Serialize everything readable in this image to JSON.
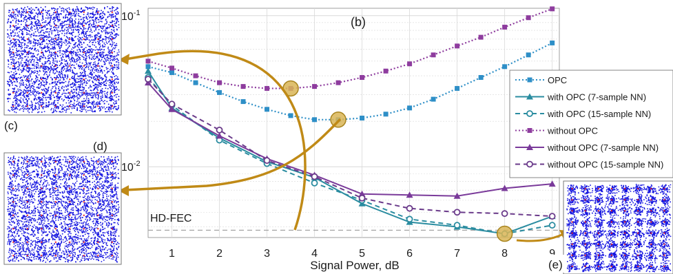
{
  "chart_data": {
    "type": "line",
    "panel_label": "(b)",
    "xlabel": "Signal Power, dB",
    "ylabel": "",
    "x": [
      0.5,
      1,
      1.5,
      2,
      2.5,
      3,
      3.5,
      4,
      4.5,
      5,
      5.5,
      6,
      6.5,
      7,
      7.5,
      8,
      8.5,
      9
    ],
    "xlim": [
      0.5,
      9.15
    ],
    "xticks": [
      1,
      2,
      3,
      4,
      5,
      6,
      7,
      8,
      9
    ],
    "ylim": [
      0.0034,
      0.112
    ],
    "yscale": "log",
    "yticks": [
      {
        "value": 0.1,
        "label": "10^-1",
        "base": "10",
        "exp": "-1"
      },
      {
        "value": 0.01,
        "label": "10^-2",
        "base": "10",
        "exp": "-2"
      }
    ],
    "grid": true,
    "threshold": {
      "label": "HD-FEC",
      "value": 0.0038
    },
    "legend_position": "right",
    "series": [
      {
        "name": "OPC",
        "style": "dotted",
        "marker": "square",
        "color": "#2e8fc7",
        "x": [
          0.5,
          1,
          1.5,
          2,
          2.5,
          3,
          3.5,
          4,
          4.5,
          5,
          5.5,
          6,
          6.5,
          7,
          7.5,
          8,
          8.5,
          9
        ],
        "y": [
          0.046,
          0.042,
          0.036,
          0.031,
          0.027,
          0.024,
          0.0218,
          0.0205,
          0.0205,
          0.021,
          0.0223,
          0.0245,
          0.028,
          0.033,
          0.039,
          0.046,
          0.055,
          0.066
        ]
      },
      {
        "name": "with OPC (7-sample NN)",
        "style": "solid",
        "marker": "triangle",
        "color": "#2a8ca0",
        "x": [
          0.5,
          1,
          2,
          3,
          4,
          5,
          6,
          7,
          8,
          9
        ],
        "y": [
          0.043,
          0.0245,
          0.0155,
          0.0108,
          0.0085,
          0.0057,
          0.0043,
          0.004,
          0.0036,
          0.0047
        ]
      },
      {
        "name": "with OPC (15-sample NN)",
        "style": "dashed",
        "marker": "circle",
        "color": "#2a8ca0",
        "x": [
          0.5,
          1,
          2,
          3,
          4,
          5,
          6,
          7,
          8,
          9
        ],
        "y": [
          0.039,
          0.0255,
          0.015,
          0.0105,
          0.0078,
          0.006,
          0.0045,
          0.0041,
          0.0036,
          0.0041
        ]
      },
      {
        "name": "without OPC",
        "style": "dotted",
        "marker": "square",
        "color": "#8e3c9e",
        "x": [
          0.5,
          1,
          1.5,
          2,
          2.5,
          3,
          3.5,
          4,
          4.5,
          5,
          5.5,
          6,
          6.5,
          7,
          7.5,
          8,
          8.5,
          9
        ],
        "y": [
          0.05,
          0.045,
          0.04,
          0.036,
          0.034,
          0.033,
          0.033,
          0.034,
          0.036,
          0.039,
          0.043,
          0.048,
          0.055,
          0.063,
          0.072,
          0.084,
          0.097,
          0.111
        ]
      },
      {
        "name": "without OPC (7-sample NN)",
        "style": "solid",
        "marker": "triangle",
        "color": "#7a3a9a",
        "x": [
          0.5,
          1,
          2,
          3,
          4,
          5,
          6,
          7,
          8,
          9
        ],
        "y": [
          0.036,
          0.024,
          0.016,
          0.0113,
          0.0088,
          0.0066,
          0.0065,
          0.0064,
          0.0072,
          0.0077
        ]
      },
      {
        "name": "without OPC (15-sample NN)",
        "style": "dashed",
        "marker": "circle",
        "color": "#6a3a8a",
        "x": [
          0.5,
          1,
          2,
          3,
          4,
          5,
          6,
          7,
          8,
          9
        ],
        "y": [
          0.038,
          0.026,
          0.0175,
          0.011,
          0.0086,
          0.0062,
          0.0053,
          0.005,
          0.0049,
          0.0047
        ]
      }
    ],
    "highlights": [
      {
        "series": "without OPC",
        "x": 3.5,
        "y": 0.033,
        "target": "(c)"
      },
      {
        "series": "OPC",
        "x": 4.5,
        "y": 0.0205,
        "target": "(d)"
      },
      {
        "series": "with OPC (15-sample NN)",
        "x": 8,
        "y": 0.0036,
        "target": "(e)"
      }
    ]
  },
  "insets": [
    {
      "id": "c",
      "label": "(c)",
      "grid": 8
    },
    {
      "id": "d",
      "label": "(d)",
      "grid": 8
    },
    {
      "id": "e",
      "label": "(e)",
      "grid": 8
    }
  ],
  "colors": {
    "constellation_points": "#1414e0",
    "constellation_centers": "#e81c1c",
    "highlight_fill": "#d9b556",
    "highlight_stroke": "#a8841e",
    "arrow": "#c08a16",
    "grid": "#d8d8d8",
    "threshold_line": "#a8a8a8"
  }
}
